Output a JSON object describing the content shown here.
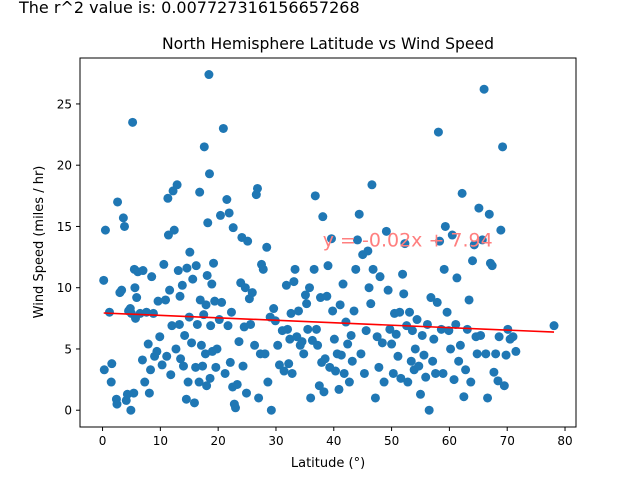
{
  "header": {
    "r2_text": "The r^2 value is: 0.007727316156657268"
  },
  "chart_data": {
    "type": "scatter",
    "title": "North Hemisphere Latitude vs Wind Speed",
    "xlabel": "Latitude (°)",
    "ylabel": "Wind Speed (miles / hr)",
    "xlim": [
      -3.9,
      81.9
    ],
    "ylim": [
      -1.37,
      28.75
    ],
    "xticks": [
      0,
      10,
      20,
      30,
      40,
      50,
      60,
      70,
      80
    ],
    "yticks": [
      0,
      5,
      10,
      15,
      20,
      25
    ],
    "grid": false,
    "point_color": "#1f77b4",
    "line_color": "#ff0000",
    "annotation": {
      "text": "y = -0.02x + 7.94",
      "color": "#ff7f7f",
      "x": 40,
      "y": 14
    },
    "regression": {
      "slope": -0.02,
      "intercept": 7.94,
      "x_range": [
        0.2,
        78.1
      ]
    },
    "points": [
      [
        0.2,
        10.6
      ],
      [
        0.3,
        3.3
      ],
      [
        0.5,
        14.7
      ],
      [
        1.2,
        8.0
      ],
      [
        1.5,
        2.3
      ],
      [
        1.6,
        3.8
      ],
      [
        2.4,
        0.9
      ],
      [
        2.5,
        0.5
      ],
      [
        2.6,
        17.0
      ],
      [
        3.0,
        9.6
      ],
      [
        3.3,
        9.8
      ],
      [
        3.6,
        15.7
      ],
      [
        3.8,
        15.0
      ],
      [
        4.1,
        0.8
      ],
      [
        4.3,
        1.3
      ],
      [
        4.5,
        8.1
      ],
      [
        4.8,
        8.3
      ],
      [
        4.9,
        0.0
      ],
      [
        5.0,
        7.9
      ],
      [
        5.2,
        23.5
      ],
      [
        5.4,
        1.4
      ],
      [
        5.5,
        11.5
      ],
      [
        5.6,
        10.0
      ],
      [
        5.7,
        7.5
      ],
      [
        5.9,
        9.2
      ],
      [
        6.1,
        11.3
      ],
      [
        6.5,
        7.9
      ],
      [
        6.9,
        4.1
      ],
      [
        7.0,
        11.4
      ],
      [
        7.3,
        2.3
      ],
      [
        7.6,
        8.0
      ],
      [
        7.9,
        5.4
      ],
      [
        8.1,
        1.4
      ],
      [
        8.3,
        3.3
      ],
      [
        8.5,
        10.9
      ],
      [
        8.8,
        7.9
      ],
      [
        9.0,
        4.4
      ],
      [
        9.4,
        4.8
      ],
      [
        9.6,
        8.9
      ],
      [
        9.9,
        6.0
      ],
      [
        10.3,
        3.7
      ],
      [
        10.6,
        11.9
      ],
      [
        10.9,
        9.0
      ],
      [
        11.1,
        4.4
      ],
      [
        11.3,
        17.3
      ],
      [
        11.4,
        14.3
      ],
      [
        11.6,
        9.8
      ],
      [
        11.8,
        2.9
      ],
      [
        12.0,
        6.9
      ],
      [
        12.2,
        17.9
      ],
      [
        12.4,
        14.7
      ],
      [
        12.7,
        5.0
      ],
      [
        12.9,
        18.4
      ],
      [
        13.1,
        11.4
      ],
      [
        13.3,
        7.0
      ],
      [
        13.4,
        9.3
      ],
      [
        13.5,
        4.2
      ],
      [
        13.8,
        10.2
      ],
      [
        14.0,
        3.6
      ],
      [
        14.2,
        6.1
      ],
      [
        14.5,
        0.9
      ],
      [
        14.6,
        11.6
      ],
      [
        14.8,
        2.3
      ],
      [
        15.0,
        7.6
      ],
      [
        15.1,
        12.9
      ],
      [
        15.4,
        5.5
      ],
      [
        15.6,
        10.7
      ],
      [
        15.9,
        0.6
      ],
      [
        16.1,
        3.5
      ],
      [
        16.2,
        11.8
      ],
      [
        16.4,
        7.0
      ],
      [
        16.7,
        2.3
      ],
      [
        16.8,
        17.8
      ],
      [
        16.9,
        9.0
      ],
      [
        17.1,
        5.3
      ],
      [
        17.3,
        3.6
      ],
      [
        17.5,
        7.8
      ],
      [
        17.6,
        21.5
      ],
      [
        17.8,
        4.6
      ],
      [
        17.9,
        8.6
      ],
      [
        18.0,
        2.0
      ],
      [
        18.1,
        11.0
      ],
      [
        18.2,
        15.3
      ],
      [
        18.4,
        27.4
      ],
      [
        18.5,
        19.3
      ],
      [
        18.6,
        2.6
      ],
      [
        18.7,
        6.9
      ],
      [
        18.9,
        10.3
      ],
      [
        19.0,
        4.8
      ],
      [
        19.2,
        12.0
      ],
      [
        19.4,
        8.9
      ],
      [
        19.6,
        3.5
      ],
      [
        19.8,
        5.0
      ],
      [
        20.2,
        7.4
      ],
      [
        20.4,
        15.9
      ],
      [
        20.6,
        8.8
      ],
      [
        20.9,
        23.0
      ],
      [
        21.2,
        3.0
      ],
      [
        21.5,
        17.2
      ],
      [
        21.7,
        6.9
      ],
      [
        21.9,
        16.1
      ],
      [
        22.1,
        3.9
      ],
      [
        22.3,
        8.0
      ],
      [
        22.5,
        1.9
      ],
      [
        22.6,
        14.9
      ],
      [
        22.8,
        0.5
      ],
      [
        23.0,
        0.2
      ],
      [
        23.3,
        2.1
      ],
      [
        23.6,
        5.6
      ],
      [
        23.9,
        10.4
      ],
      [
        24.1,
        14.1
      ],
      [
        24.3,
        3.6
      ],
      [
        24.5,
        6.8
      ],
      [
        24.7,
        10.0
      ],
      [
        24.9,
        1.4
      ],
      [
        25.1,
        13.8
      ],
      [
        25.4,
        9.1
      ],
      [
        25.6,
        7.0
      ],
      [
        25.9,
        9.6
      ],
      [
        26.3,
        5.3
      ],
      [
        26.6,
        17.6
      ],
      [
        26.8,
        18.1
      ],
      [
        27.0,
        1.0
      ],
      [
        27.3,
        4.6
      ],
      [
        27.5,
        11.9
      ],
      [
        27.8,
        11.5
      ],
      [
        28.1,
        4.6
      ],
      [
        28.4,
        13.3
      ],
      [
        28.6,
        2.3
      ],
      [
        29.0,
        7.6
      ],
      [
        29.2,
        0.0
      ],
      [
        29.6,
        8.3
      ],
      [
        29.9,
        7.3
      ],
      [
        30.3,
        5.3
      ],
      [
        30.6,
        3.7
      ],
      [
        31.1,
        6.5
      ],
      [
        31.4,
        3.2
      ],
      [
        31.8,
        10.2
      ],
      [
        32.0,
        6.6
      ],
      [
        32.2,
        3.8
      ],
      [
        32.4,
        5.8
      ],
      [
        32.6,
        7.9
      ],
      [
        32.8,
        3.0
      ],
      [
        33.1,
        10.5
      ],
      [
        33.3,
        11.5
      ],
      [
        33.6,
        6.0
      ],
      [
        33.9,
        8.1
      ],
      [
        34.2,
        5.3
      ],
      [
        34.5,
        5.6
      ],
      [
        34.8,
        4.6
      ],
      [
        35.1,
        9.4
      ],
      [
        35.3,
        8.7
      ],
      [
        35.5,
        6.6
      ],
      [
        35.8,
        10.0
      ],
      [
        36.0,
        1.0
      ],
      [
        36.3,
        5.7
      ],
      [
        36.6,
        11.5
      ],
      [
        36.8,
        17.5
      ],
      [
        37.0,
        6.6
      ],
      [
        37.2,
        5.3
      ],
      [
        37.5,
        2.0
      ],
      [
        37.7,
        9.2
      ],
      [
        37.9,
        3.9
      ],
      [
        38.1,
        15.8
      ],
      [
        38.3,
        1.5
      ],
      [
        38.5,
        4.2
      ],
      [
        38.8,
        9.3
      ],
      [
        39.0,
        11.8
      ],
      [
        39.3,
        3.5
      ],
      [
        39.6,
        14.0
      ],
      [
        39.8,
        8.1
      ],
      [
        40.1,
        5.8
      ],
      [
        40.3,
        3.2
      ],
      [
        40.6,
        4.6
      ],
      [
        40.9,
        1.7
      ],
      [
        41.1,
        8.6
      ],
      [
        41.3,
        4.5
      ],
      [
        41.6,
        10.3
      ],
      [
        41.8,
        3.0
      ],
      [
        42.1,
        7.2
      ],
      [
        42.4,
        5.4
      ],
      [
        42.7,
        2.3
      ],
      [
        43.0,
        6.1
      ],
      [
        43.2,
        4.0
      ],
      [
        43.5,
        8.1
      ],
      [
        43.8,
        11.5
      ],
      [
        44.1,
        13.9
      ],
      [
        44.4,
        16.0
      ],
      [
        44.7,
        4.6
      ],
      [
        45.0,
        12.7
      ],
      [
        45.3,
        3.0
      ],
      [
        45.6,
        6.5
      ],
      [
        45.9,
        13.0
      ],
      [
        46.1,
        10.0
      ],
      [
        46.4,
        8.7
      ],
      [
        46.6,
        18.4
      ],
      [
        46.8,
        11.5
      ],
      [
        47.2,
        1.0
      ],
      [
        47.5,
        6.0
      ],
      [
        47.8,
        3.5
      ],
      [
        48.0,
        10.9
      ],
      [
        48.4,
        5.5
      ],
      [
        48.7,
        2.3
      ],
      [
        49.1,
        14.6
      ],
      [
        49.4,
        9.8
      ],
      [
        49.7,
        6.6
      ],
      [
        50.0,
        5.4
      ],
      [
        50.3,
        3.0
      ],
      [
        50.5,
        7.9
      ],
      [
        50.8,
        6.2
      ],
      [
        51.1,
        4.4
      ],
      [
        51.4,
        8.0
      ],
      [
        51.6,
        2.6
      ],
      [
        51.9,
        11.1
      ],
      [
        52.1,
        9.5
      ],
      [
        52.3,
        13.6
      ],
      [
        52.6,
        6.9
      ],
      [
        52.8,
        2.3
      ],
      [
        53.1,
        8.0
      ],
      [
        53.4,
        4.0
      ],
      [
        53.6,
        6.5
      ],
      [
        53.9,
        3.3
      ],
      [
        54.1,
        5.0
      ],
      [
        54.4,
        7.4
      ],
      [
        54.7,
        3.6
      ],
      [
        55.0,
        1.3
      ],
      [
        55.3,
        6.1
      ],
      [
        55.6,
        4.5
      ],
      [
        55.9,
        2.7
      ],
      [
        56.2,
        7.0
      ],
      [
        56.5,
        0.0
      ],
      [
        56.8,
        9.2
      ],
      [
        57.1,
        4.0
      ],
      [
        57.3,
        5.8
      ],
      [
        57.6,
        3.0
      ],
      [
        57.9,
        8.8
      ],
      [
        58.1,
        22.7
      ],
      [
        58.3,
        13.8
      ],
      [
        58.6,
        6.6
      ],
      [
        58.9,
        3.0
      ],
      [
        59.1,
        11.5
      ],
      [
        59.3,
        15.0
      ],
      [
        59.6,
        8.0
      ],
      [
        59.9,
        6.5
      ],
      [
        60.2,
        5.0
      ],
      [
        60.5,
        14.3
      ],
      [
        60.8,
        2.5
      ],
      [
        61.1,
        7.0
      ],
      [
        61.3,
        10.8
      ],
      [
        61.6,
        4.0
      ],
      [
        61.9,
        5.3
      ],
      [
        62.2,
        17.7
      ],
      [
        62.5,
        1.1
      ],
      [
        62.8,
        3.3
      ],
      [
        63.1,
        6.6
      ],
      [
        63.4,
        9.0
      ],
      [
        63.7,
        2.3
      ],
      [
        64.0,
        12.2
      ],
      [
        64.3,
        13.5
      ],
      [
        64.6,
        6.0
      ],
      [
        64.8,
        4.6
      ],
      [
        65.1,
        16.5
      ],
      [
        65.4,
        6.1
      ],
      [
        65.7,
        13.9
      ],
      [
        66.0,
        26.2
      ],
      [
        66.3,
        4.6
      ],
      [
        66.6,
        1.0
      ],
      [
        66.9,
        16.0
      ],
      [
        67.1,
        12.0
      ],
      [
        67.4,
        11.8
      ],
      [
        67.7,
        3.1
      ],
      [
        68.0,
        4.6
      ],
      [
        68.4,
        2.4
      ],
      [
        68.6,
        6.0
      ],
      [
        68.9,
        14.7
      ],
      [
        69.2,
        21.5
      ],
      [
        69.5,
        2.0
      ],
      [
        69.8,
        4.5
      ],
      [
        70.1,
        6.6
      ],
      [
        70.5,
        5.8
      ],
      [
        71.0,
        6.0
      ],
      [
        71.5,
        4.8
      ],
      [
        78.1,
        6.9
      ]
    ]
  }
}
